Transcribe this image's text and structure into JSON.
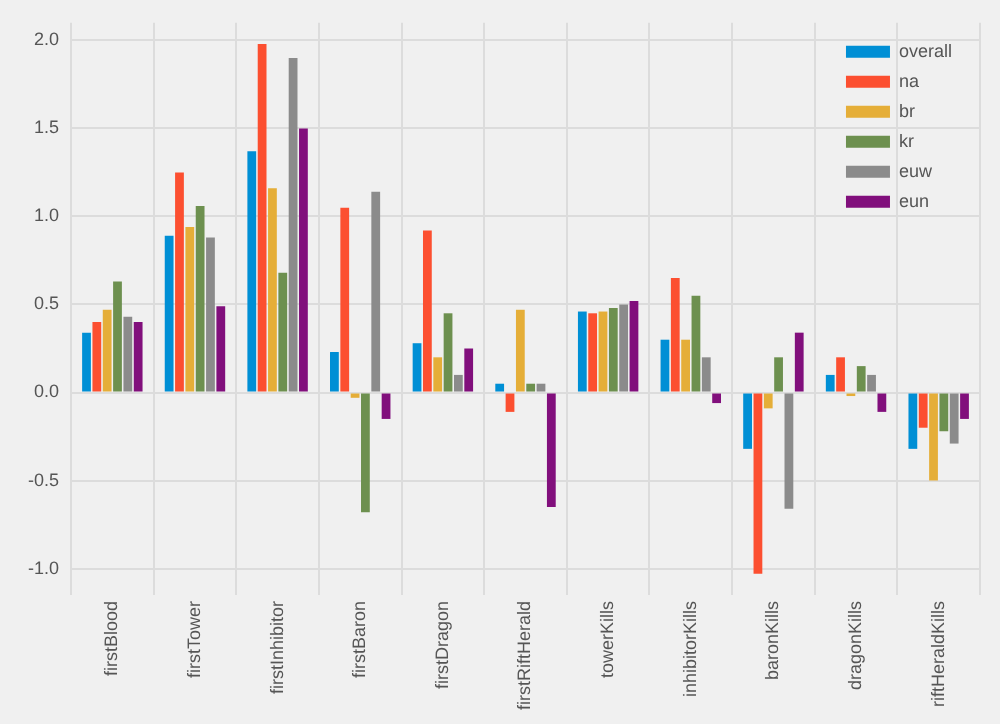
{
  "chart_data": {
    "type": "bar",
    "categories": [
      "firstBlood",
      "firstTower",
      "firstInhibitor",
      "firstBaron",
      "firstDragon",
      "firstRiftHerald",
      "towerKills",
      "inhibitorKills",
      "baronKills",
      "dragonKills",
      "riftHeraldKills"
    ],
    "series": [
      {
        "name": "overall",
        "color": "#008fd5",
        "values": [
          0.34,
          0.89,
          1.37,
          0.23,
          0.28,
          0.05,
          0.46,
          0.3,
          -0.32,
          0.1,
          -0.32
        ]
      },
      {
        "name": "na",
        "color": "#fc4f30",
        "values": [
          0.4,
          1.25,
          1.98,
          1.05,
          0.92,
          -0.11,
          0.45,
          0.65,
          -1.03,
          0.2,
          -0.2
        ]
      },
      {
        "name": "br",
        "color": "#e5ae38",
        "values": [
          0.47,
          0.94,
          1.16,
          -0.03,
          0.2,
          0.47,
          0.46,
          0.3,
          -0.09,
          -0.02,
          -0.5
        ]
      },
      {
        "name": "kr",
        "color": "#6d904f",
        "values": [
          0.63,
          1.06,
          0.68,
          -0.68,
          0.45,
          0.05,
          0.48,
          0.55,
          0.2,
          0.15,
          -0.22
        ]
      },
      {
        "name": "euw",
        "color": "#8b8b8b",
        "values": [
          0.43,
          0.88,
          1.9,
          1.14,
          0.1,
          0.05,
          0.5,
          0.2,
          -0.66,
          0.1,
          -0.29
        ]
      },
      {
        "name": "eun",
        "color": "#810f7c",
        "values": [
          0.4,
          0.49,
          1.5,
          -0.15,
          0.25,
          -0.65,
          0.52,
          -0.06,
          0.34,
          -0.11,
          -0.15
        ]
      }
    ],
    "ylim": [
      -1.15,
      2.1
    ],
    "yticks": [
      {
        "value": -1,
        "label": "-1.0"
      },
      -0.5,
      {
        "value": 0,
        "label": "0.0"
      },
      0.5,
      {
        "value": 1,
        "label": "1.0"
      },
      1.5,
      {
        "value": 2,
        "label": "2.0"
      }
    ],
    "grid": true,
    "legend": "top right"
  }
}
